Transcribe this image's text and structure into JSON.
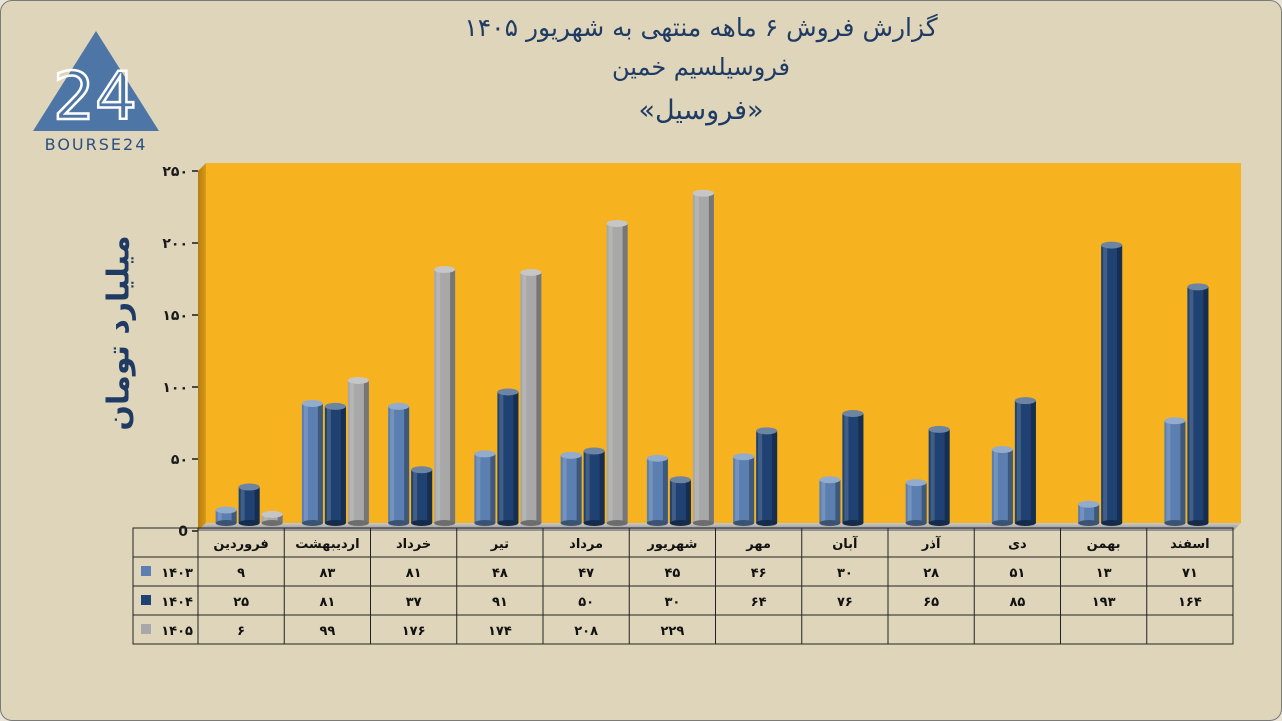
{
  "header": {
    "line1": "گزارش  فروش ۶ ماهه منتهی به شهریور ۱۴۰۵",
    "line2": "فروسیلسیم خمین",
    "line3": "«فروسیل»"
  },
  "logo": {
    "text": "BOURSE24",
    "mark": "24",
    "icon": "triangle-logo-icon"
  },
  "chart_data": {
    "type": "bar",
    "ylabel": "میلیارد تومان",
    "ylim": [
      0,
      250
    ],
    "yticks": [
      0,
      50,
      100,
      150,
      200,
      250
    ],
    "ytick_labels": [
      "0",
      "۵۰",
      "۱۰۰",
      "۱۵۰",
      "۲۰۰",
      "۲۵۰"
    ],
    "categories": [
      "فروردین",
      "اردیبهشت",
      "خرداد",
      "تیر",
      "مرداد",
      "شهریور",
      "مهر",
      "آبان",
      "آذر",
      "دی",
      "بهمن",
      "اسفند"
    ],
    "series": [
      {
        "name": "۱۴۰۳",
        "color": "#5a7fb0",
        "values": [
          9,
          83,
          81,
          48,
          47,
          45,
          46,
          30,
          28,
          51,
          13,
          71
        ],
        "labels": [
          "۹",
          "۸۳",
          "۸۱",
          "۴۸",
          "۴۷",
          "۴۵",
          "۴۶",
          "۳۰",
          "۲۸",
          "۵۱",
          "۱۳",
          "۷۱"
        ]
      },
      {
        "name": "۱۴۰۴",
        "color": "#1f4272",
        "values": [
          25,
          81,
          37,
          91,
          50,
          30,
          64,
          76,
          65,
          85,
          193,
          164
        ],
        "labels": [
          "۲۵",
          "۸۱",
          "۳۷",
          "۹۱",
          "۵۰",
          "۳۰",
          "۶۴",
          "۷۶",
          "۶۵",
          "۸۵",
          "۱۹۳",
          "۱۶۴"
        ]
      },
      {
        "name": "۱۴۰۵",
        "color": "#a8a8a8",
        "values": [
          6,
          99,
          176,
          174,
          208,
          229,
          null,
          null,
          null,
          null,
          null,
          null
        ],
        "labels": [
          "۶",
          "۹۹",
          "۱۷۶",
          "۱۷۴",
          "۲۰۸",
          "۲۲۹",
          "",
          "",
          "",
          "",
          "",
          ""
        ]
      }
    ],
    "plot_background": "#f7b21f",
    "grid": false,
    "legend": "data-table-left"
  }
}
